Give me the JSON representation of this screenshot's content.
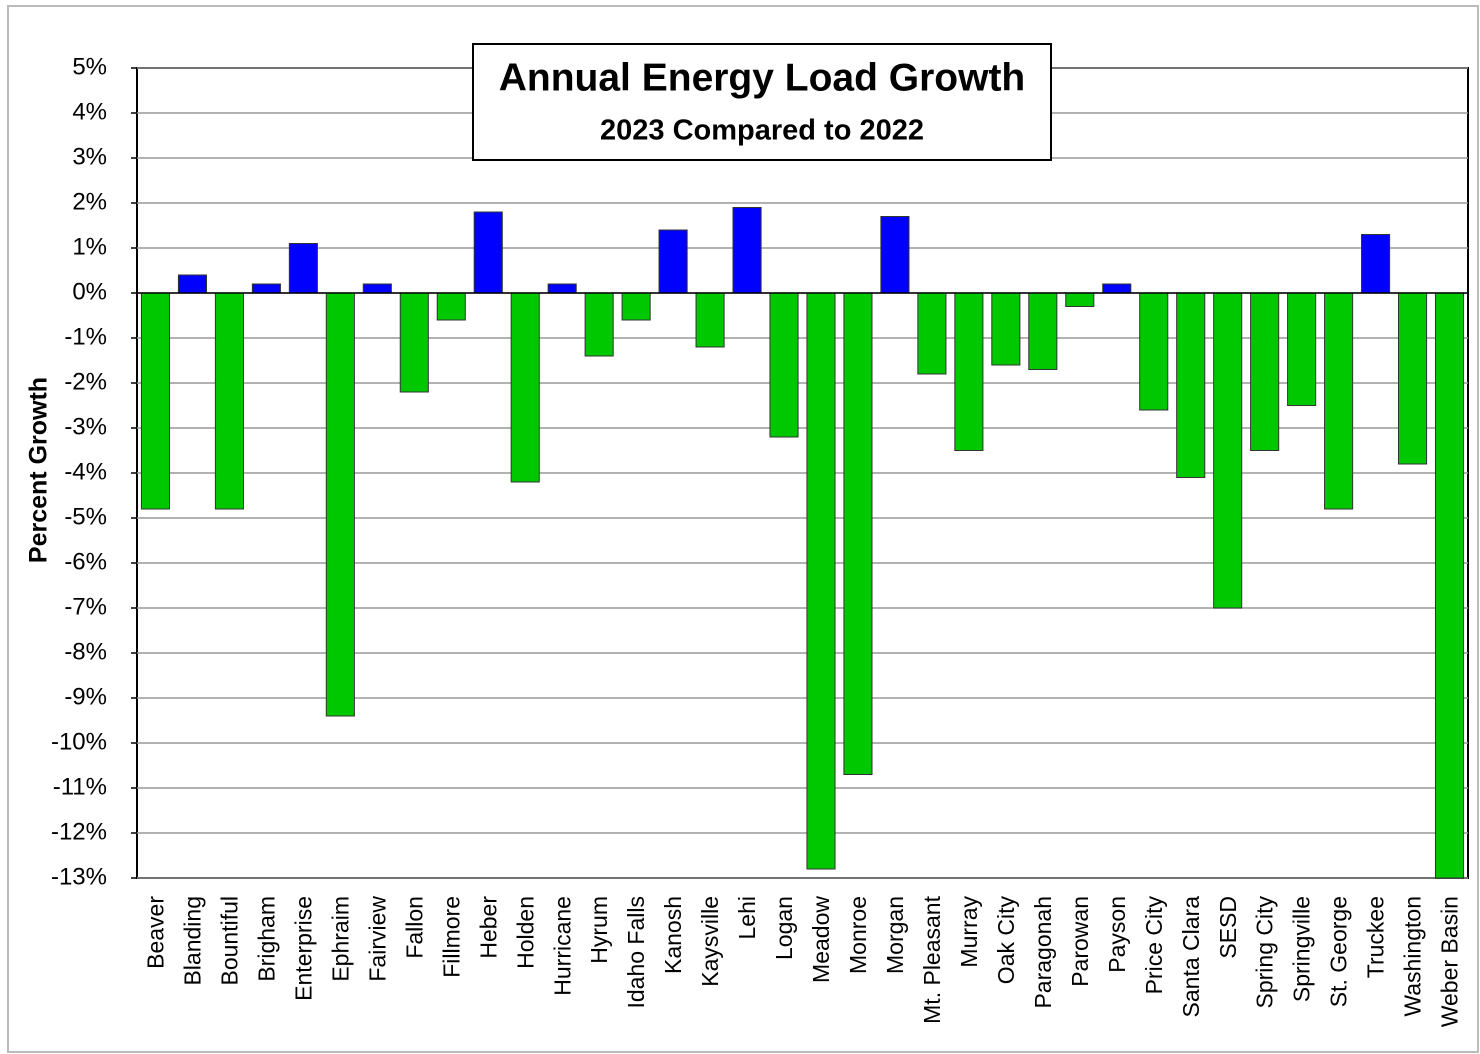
{
  "chart_data": {
    "type": "bar",
    "title": "Annual Energy Load Growth",
    "subtitle": "2023 Compared to 2022",
    "y_label": "Percent Growth",
    "categories": [
      "Beaver",
      "Blanding",
      "Bountiful",
      "Brigham",
      "Enterprise",
      "Ephraim",
      "Fairview",
      "Fallon",
      "Fillmore",
      "Heber",
      "Holden",
      "Hurricane",
      "Hyrum",
      "Idaho Falls",
      "Kanosh",
      "Kaysville",
      "Lehi",
      "Logan",
      "Meadow",
      "Monroe",
      "Morgan",
      "Mt. Pleasant",
      "Murray",
      "Oak City",
      "Paragonah",
      "Parowan",
      "Payson",
      "Price City",
      "Santa Clara",
      "SESD",
      "Spring City",
      "Springville",
      "St. George",
      "Truckee",
      "Washington",
      "Weber Basin"
    ],
    "values": [
      -4.8,
      0.4,
      -4.8,
      0.2,
      1.1,
      -9.4,
      0.2,
      -2.2,
      -0.6,
      1.8,
      -4.2,
      0.2,
      -1.4,
      -0.6,
      1.4,
      -1.2,
      1.9,
      -3.2,
      -12.8,
      -10.7,
      1.7,
      -1.8,
      -3.5,
      -1.6,
      -1.7,
      -0.3,
      0.2,
      -2.6,
      -4.1,
      -7.0,
      -3.5,
      -2.5,
      -4.8,
      1.3,
      -3.8,
      -13.0
    ],
    "positive_color": "#0000ff",
    "negative_color": "#00c800",
    "ylim": [
      -13,
      5
    ],
    "yticks": [
      {
        "value": 5,
        "label": "5%"
      },
      {
        "value": 4,
        "label": "4%"
      },
      {
        "value": 3,
        "label": "3%"
      },
      {
        "value": 2,
        "label": "2%"
      },
      {
        "value": 1,
        "label": "1%"
      },
      {
        "value": 0,
        "label": "0%"
      },
      {
        "value": -1,
        "label": "-1%"
      },
      {
        "value": -2,
        "label": "-2%"
      },
      {
        "value": -3,
        "label": "-3%"
      },
      {
        "value": -4,
        "label": "-4%"
      },
      {
        "value": -5,
        "label": "-5%"
      },
      {
        "value": -6,
        "label": "-6%"
      },
      {
        "value": -7,
        "label": "-7%"
      },
      {
        "value": -8,
        "label": "-8%"
      },
      {
        "value": -9,
        "label": "-9%"
      },
      {
        "value": -10,
        "label": "-10%"
      },
      {
        "value": -11,
        "label": "-11%"
      },
      {
        "value": -12,
        "label": "-12%"
      },
      {
        "value": -13,
        "label": "-13%"
      }
    ],
    "grid": true
  }
}
